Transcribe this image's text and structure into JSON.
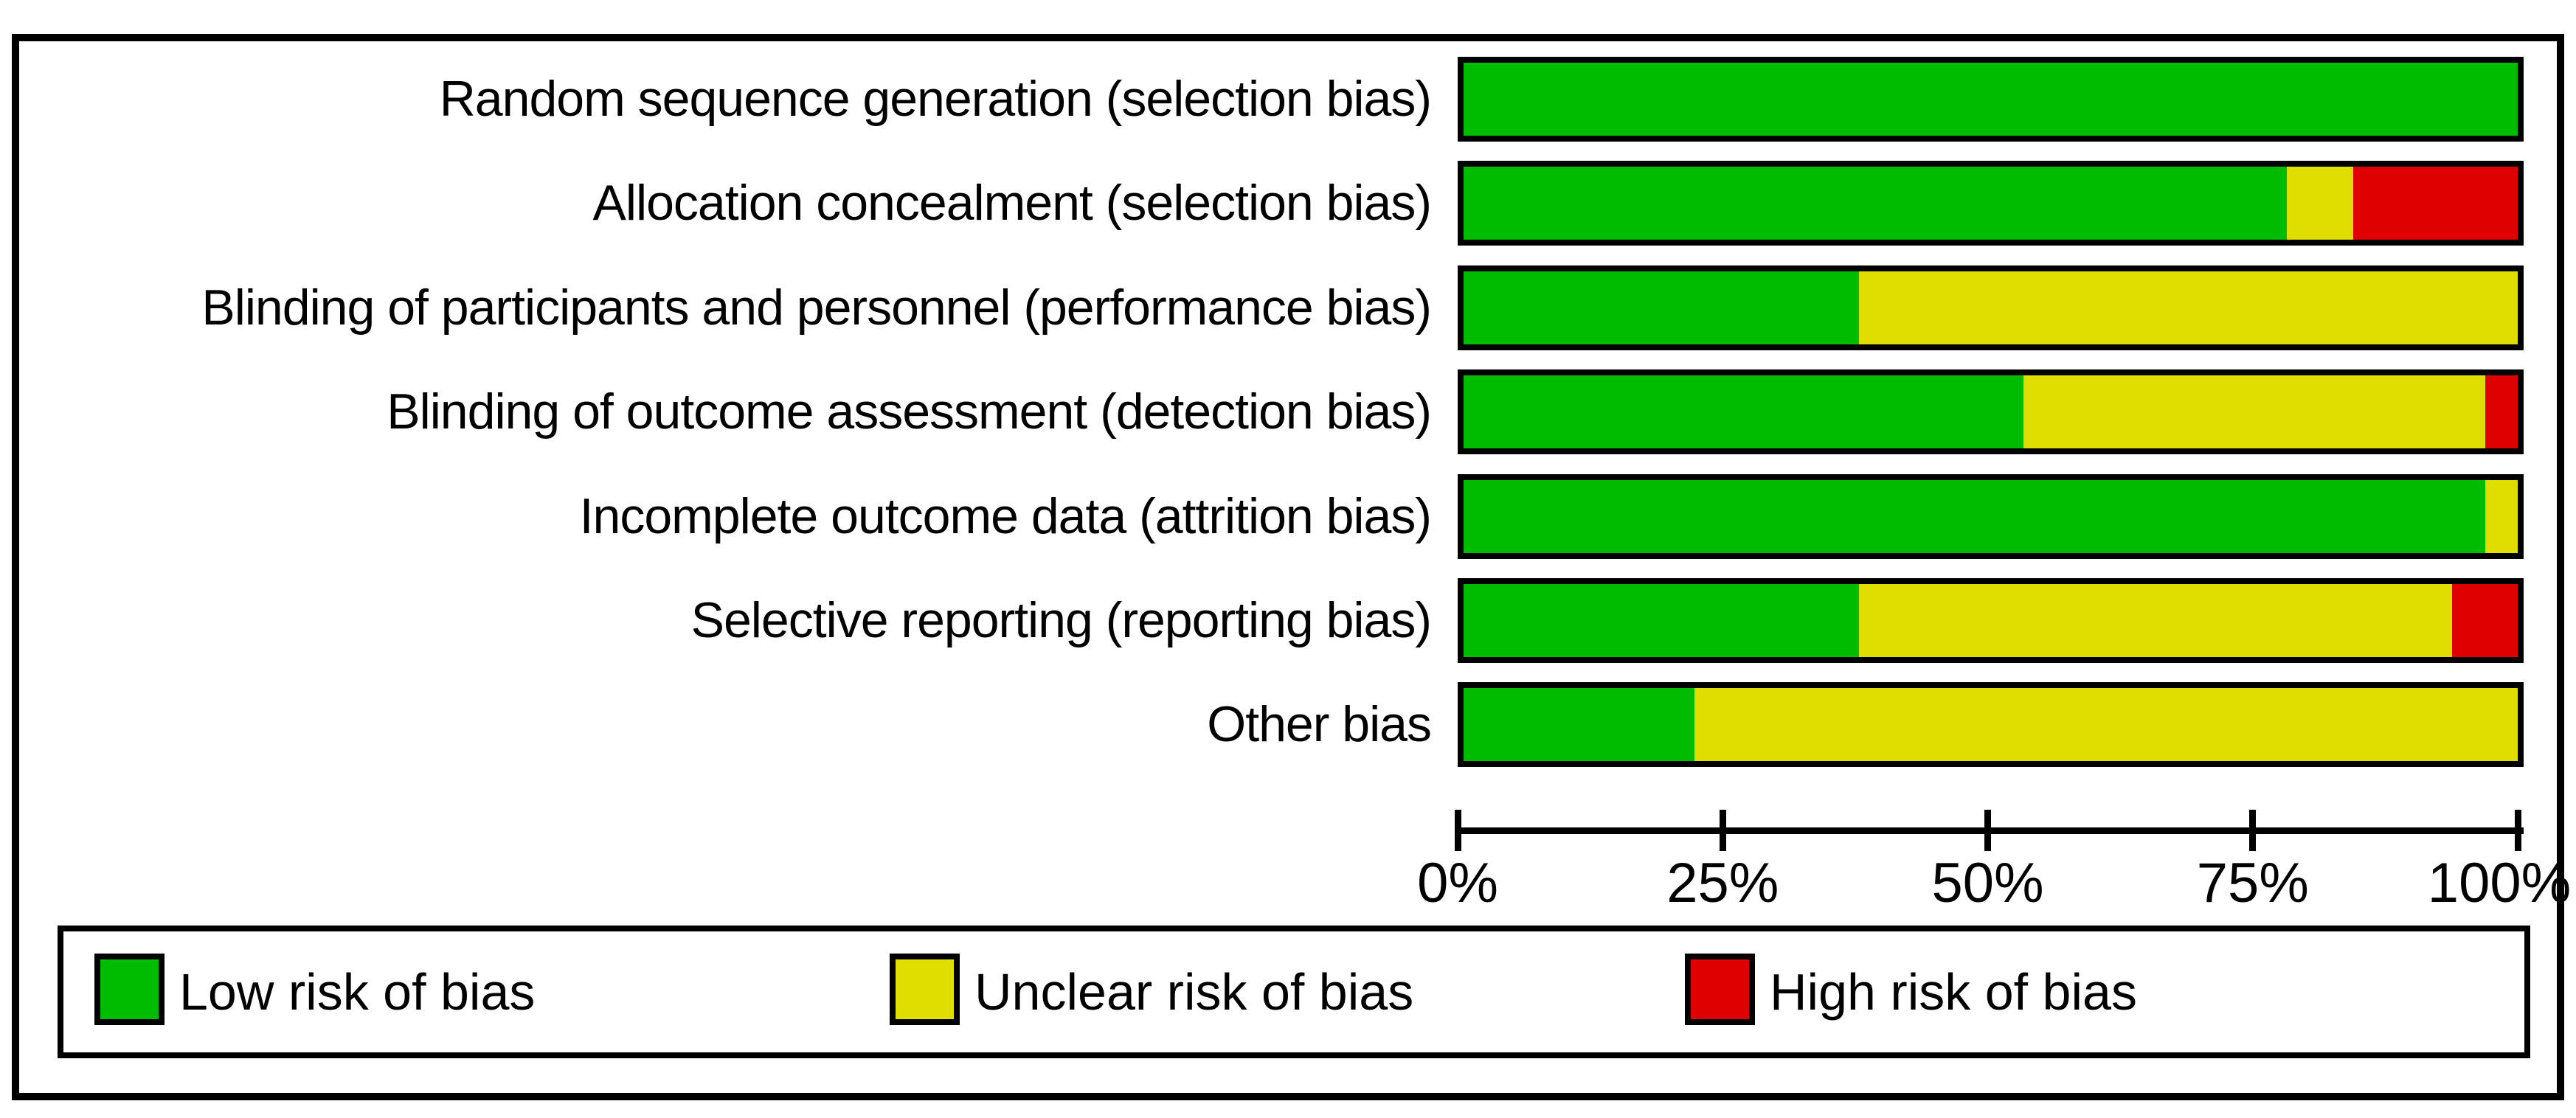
{
  "colors": {
    "low": "#00BC00",
    "unclear": "#E0DD00",
    "high": "#DF0000",
    "border": "#000000"
  },
  "chart_data": {
    "type": "bar",
    "stacked": true,
    "orientation": "horizontal",
    "title": "",
    "xlabel": "",
    "ylabel": "",
    "grid": false,
    "categories": [
      "Random sequence generation (selection bias)",
      "Allocation concealment (selection bias)",
      "Blinding of participants and personnel (performance bias)",
      "Blinding of outcome assessment (detection bias)",
      "Incomplete outcome data (attrition bias)",
      "Selective reporting (reporting bias)",
      "Other bias"
    ],
    "series": [
      {
        "name": "Low risk of bias",
        "color_key": "low",
        "values": [
          100,
          78.1,
          37.5,
          53.1,
          96.9,
          37.5,
          21.9
        ]
      },
      {
        "name": "Unclear risk of bias",
        "color_key": "unclear",
        "values": [
          0,
          6.3,
          62.5,
          43.8,
          3.1,
          56.3,
          78.1
        ]
      },
      {
        "name": "High risk of bias",
        "color_key": "high",
        "values": [
          0,
          15.6,
          0,
          3.1,
          0,
          6.3,
          0
        ]
      }
    ],
    "x_axis": {
      "range": [
        0,
        100
      ],
      "unit": "%",
      "tick_labels": [
        "0%",
        "25%",
        "50%",
        "75%",
        "100%"
      ]
    },
    "legend": [
      {
        "label": "Low risk of bias",
        "color_key": "low"
      },
      {
        "label": "Unclear risk of bias",
        "color_key": "unclear"
      },
      {
        "label": "High risk of bias",
        "color_key": "high"
      }
    ],
    "legend_position": "bottom"
  }
}
